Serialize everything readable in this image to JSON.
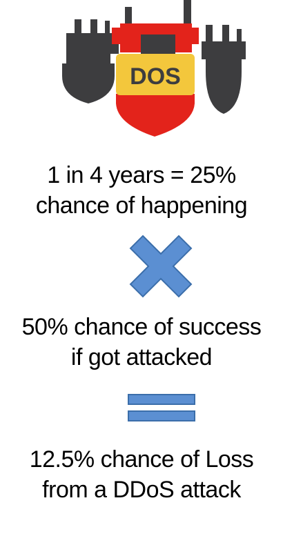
{
  "logo": {
    "label": "DOS"
  },
  "statements": {
    "probability": {
      "line1": "1 in 4 years = 25%",
      "line2": "chance of happening"
    },
    "success": {
      "line1": "50% chance of success",
      "line2": "if got attacked"
    },
    "result": {
      "line1": "12.5% chance of Loss",
      "line2": "from a DDoS attack"
    }
  },
  "icons": {
    "multiply": "multiply-icon",
    "equals": "equals-icon",
    "logo": "bomb-shield-icon"
  },
  "colors": {
    "shield_red": "#e3231b",
    "label_yellow": "#f3c73c",
    "bomb_dark": "#3d3d3f",
    "operator_blue": "#5b8fd2",
    "operator_stroke": "#3b6eaa"
  }
}
